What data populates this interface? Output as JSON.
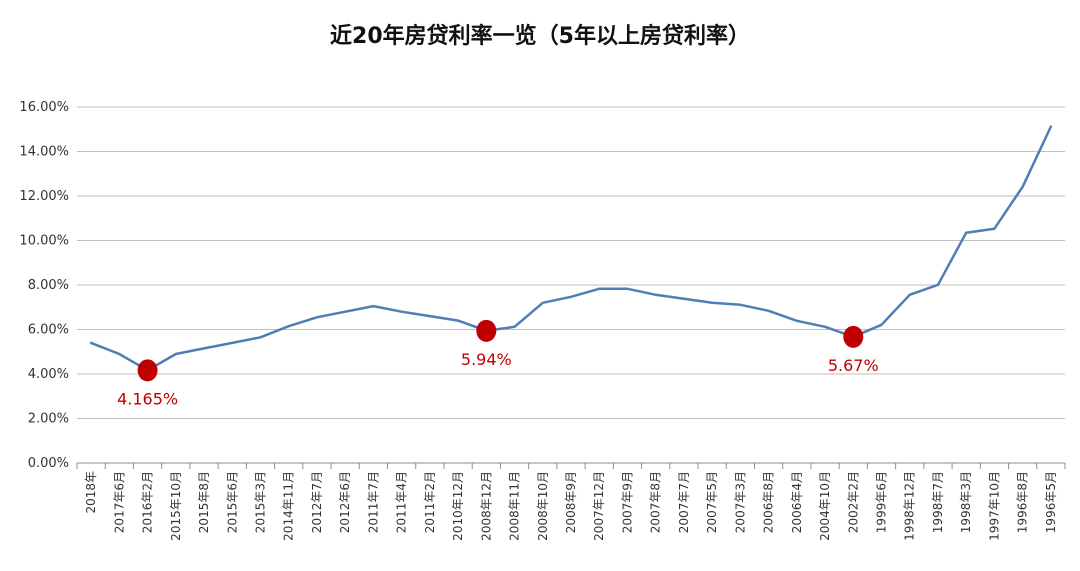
{
  "chart_data": {
    "type": "line",
    "title": "近20年房贷利率一览（5年以上房贷利率）",
    "xlabel": "",
    "ylabel": "",
    "ylim": [
      0,
      16
    ],
    "ytick_labels": [
      "0.00%",
      "2.00%",
      "4.00%",
      "6.00%",
      "8.00%",
      "10.00%",
      "12.00%",
      "14.00%",
      "16.00%"
    ],
    "grid": true,
    "categories": [
      "2018年",
      "2017年6月",
      "2016年2月",
      "2015年10月",
      "2015年8月",
      "2015年6月",
      "2015年3月",
      "2014年11月",
      "2012年7月",
      "2012年6月",
      "2011年7月",
      "2011年4月",
      "2011年2月",
      "2010年12月",
      "2008年12月",
      "2008年11月",
      "2008年10月",
      "2008年9月",
      "2007年12月",
      "2007年9月",
      "2007年8月",
      "2007年7月",
      "2007年5月",
      "2007年3月",
      "2006年8月",
      "2006年4月",
      "2004年10月",
      "2002年2月",
      "1999年6月",
      "1998年12月",
      "1998年7月",
      "1998年3月",
      "1997年10月",
      "1996年8月",
      "1996年5月"
    ],
    "series": [
      {
        "color": "#4f7eb6",
        "values": [
          5.4,
          4.9,
          4.165,
          4.9,
          5.15,
          5.4,
          5.65,
          6.15,
          6.55,
          6.8,
          7.05,
          6.8,
          6.6,
          6.4,
          5.94,
          6.12,
          7.2,
          7.47,
          7.83,
          7.83,
          7.56,
          7.38,
          7.2,
          7.11,
          6.84,
          6.39,
          6.12,
          5.67,
          6.21,
          7.56,
          8.01,
          10.35,
          10.53,
          12.42,
          15.12
        ]
      }
    ],
    "markers": [
      {
        "index": 2,
        "label": "4.165%"
      },
      {
        "index": 14,
        "label": "5.94%"
      },
      {
        "index": 27,
        "label": "5.67%"
      }
    ],
    "colors": {
      "line": "#4f7eb6",
      "marker": "#c00000",
      "label": "#c00000",
      "grid": "#bfbfbf",
      "axis": "#8c8c8c"
    }
  }
}
